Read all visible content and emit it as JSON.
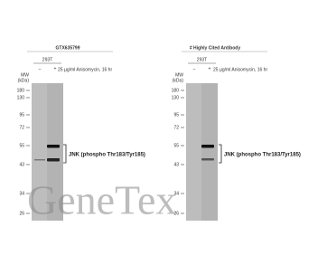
{
  "panels": [
    {
      "title": "GTX635799",
      "cell_line": "293T",
      "lanes": [
        "–",
        "+"
      ],
      "treatment": "25 µg/ml Anisomycin, 16 hr",
      "mw_header": [
        "MW",
        "(kDa)"
      ],
      "markers": [
        "180",
        "130",
        "95",
        "72",
        "55",
        "43",
        "34",
        "26"
      ],
      "band_label": "JNK (phospho  Thr183/Tyr185)"
    },
    {
      "title": "# Highly Cited Antibody",
      "cell_line": "293T",
      "lanes": [
        "–",
        "+"
      ],
      "treatment": "25 µg/ml Anisomycin, 16 hr",
      "mw_header": [
        "MW",
        "(kDa)"
      ],
      "markers": [
        "180",
        "130",
        "95",
        "72",
        "55",
        "43",
        "34",
        "26"
      ],
      "band_label": "JNK (phospho  Thr183/Tyr185)"
    }
  ],
  "watermark": "GeneTex"
}
